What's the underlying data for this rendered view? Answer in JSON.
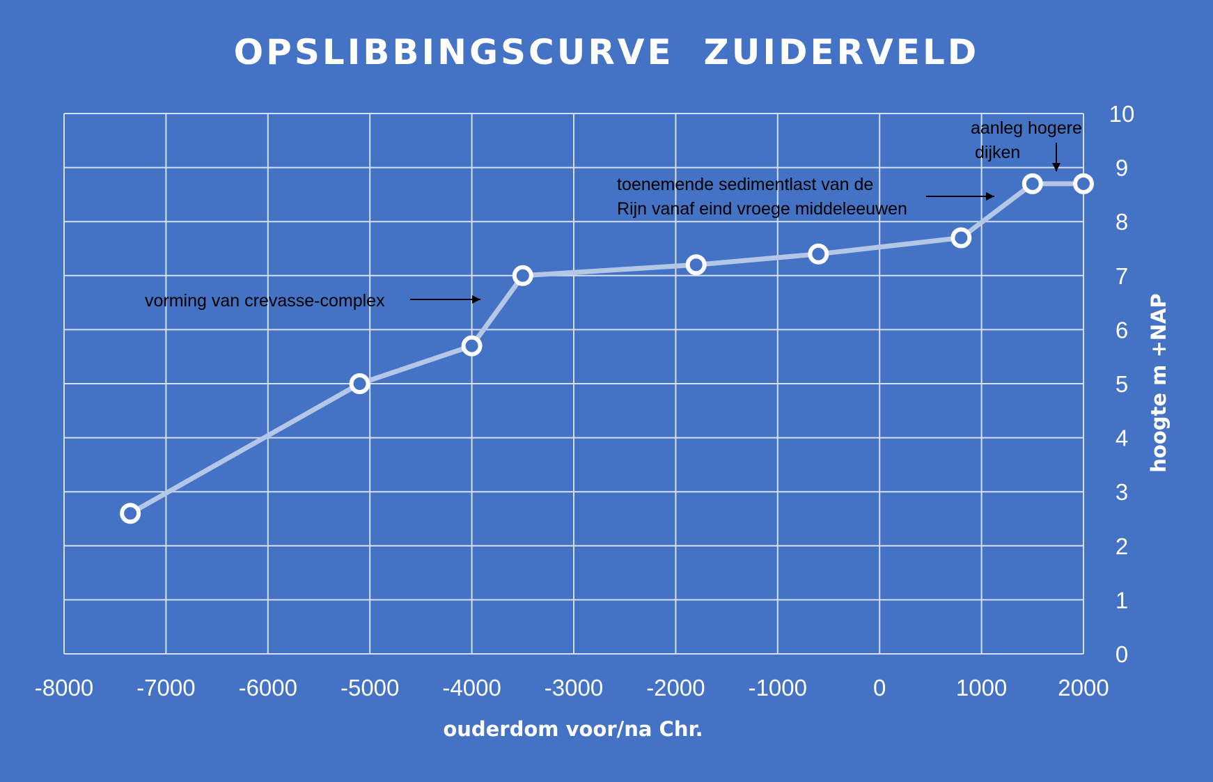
{
  "chart_data": {
    "type": "line",
    "title": "OPSLIBBINGSCURVE  ZUIDERVELD",
    "xlabel": "ouderdom voor/na Chr.",
    "ylabel": "hoogte m +NAP",
    "xlim": [
      -8000,
      2000
    ],
    "ylim": [
      0,
      10
    ],
    "x_ticks": [
      "-8000",
      "-7000",
      "-6000",
      "-5000",
      "-4000",
      "-3000",
      "-2000",
      "-1000",
      "0",
      "1000",
      "2000"
    ],
    "y_ticks": [
      "0",
      "1",
      "2",
      "3",
      "4",
      "5",
      "6",
      "7",
      "8",
      "9",
      "10"
    ],
    "y_axis_position": "right",
    "grid": true,
    "series": [
      {
        "x": [
          -7350,
          -5100,
          -4000,
          -3500,
          -1800,
          -600,
          800,
          1500,
          2000
        ],
        "y": [
          2.6,
          5.0,
          5.7,
          7.0,
          7.2,
          7.4,
          7.7,
          8.7,
          8.7
        ]
      }
    ],
    "annotations": [
      {
        "lines": [
          "vorming van crevasse-complex"
        ]
      },
      {
        "lines": [
          "toenemende sedimentlast van de",
          "Rijn vanaf eind vroege middeleeuwen"
        ]
      },
      {
        "lines": [
          "aanleg hogere",
          "dijken"
        ]
      }
    ],
    "colors": {
      "background": "#4472c4",
      "grid": "#d6dff0",
      "line": "#b4c7e7",
      "marker_stroke": "#ffffff",
      "marker_fill": "#4472c4",
      "text": "#ffffff",
      "annotation_text": "#000000"
    }
  }
}
